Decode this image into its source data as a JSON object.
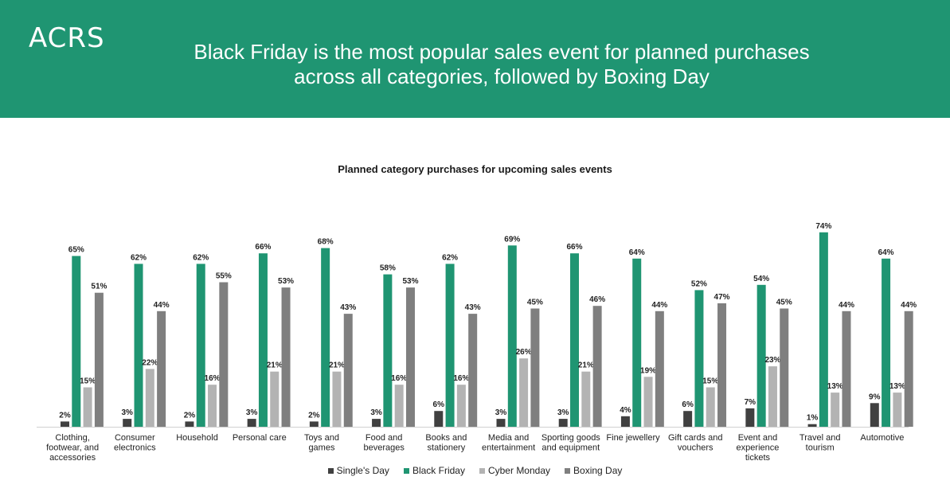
{
  "header": {
    "logo": "ACRS",
    "headline_line1": "Black Friday is the most popular sales event for planned purchases",
    "headline_line2": "across all categories, followed by Boxing Day"
  },
  "colors": {
    "banner": "#1f9572",
    "singles_day": "#404040",
    "black_friday": "#1f9572",
    "cyber_monday": "#b3b3b3",
    "boxing_day": "#7f7f7f"
  },
  "chart_data": {
    "type": "bar",
    "title": "Planned category purchases for upcoming sales events",
    "ylim": [
      0,
      80
    ],
    "grid": false,
    "legend_position": "bottom",
    "value_format": "percent",
    "categories": [
      [
        "Clothing,",
        "footwear, and",
        "accessories"
      ],
      [
        "Consumer",
        "electronics"
      ],
      [
        "Household"
      ],
      [
        "Personal care"
      ],
      [
        "Toys and",
        "games"
      ],
      [
        "Food and",
        "beverages"
      ],
      [
        "Books and",
        "stationery"
      ],
      [
        "Media and",
        "entertainment"
      ],
      [
        "Sporting goods",
        "and equipment"
      ],
      [
        "Fine jewellery"
      ],
      [
        "Gift cards and",
        "vouchers"
      ],
      [
        "Event and",
        "experience",
        "tickets"
      ],
      [
        "Travel and",
        "tourism"
      ],
      [
        "Automotive"
      ]
    ],
    "series": [
      {
        "name": "Single's Day",
        "color": "#404040",
        "values": [
          2,
          3,
          2,
          3,
          2,
          3,
          6,
          3,
          3,
          4,
          6,
          7,
          1,
          9
        ]
      },
      {
        "name": "Black Friday",
        "color": "#1f9572",
        "values": [
          65,
          62,
          62,
          66,
          68,
          58,
          62,
          69,
          66,
          64,
          52,
          54,
          74,
          64
        ]
      },
      {
        "name": "Cyber Monday",
        "color": "#b3b3b3",
        "values": [
          15,
          22,
          16,
          21,
          21,
          16,
          16,
          26,
          21,
          19,
          15,
          23,
          13,
          13
        ]
      },
      {
        "name": "Boxing Day",
        "color": "#7f7f7f",
        "values": [
          51,
          44,
          55,
          53,
          43,
          53,
          43,
          45,
          46,
          44,
          47,
          45,
          44,
          44
        ]
      }
    ]
  }
}
